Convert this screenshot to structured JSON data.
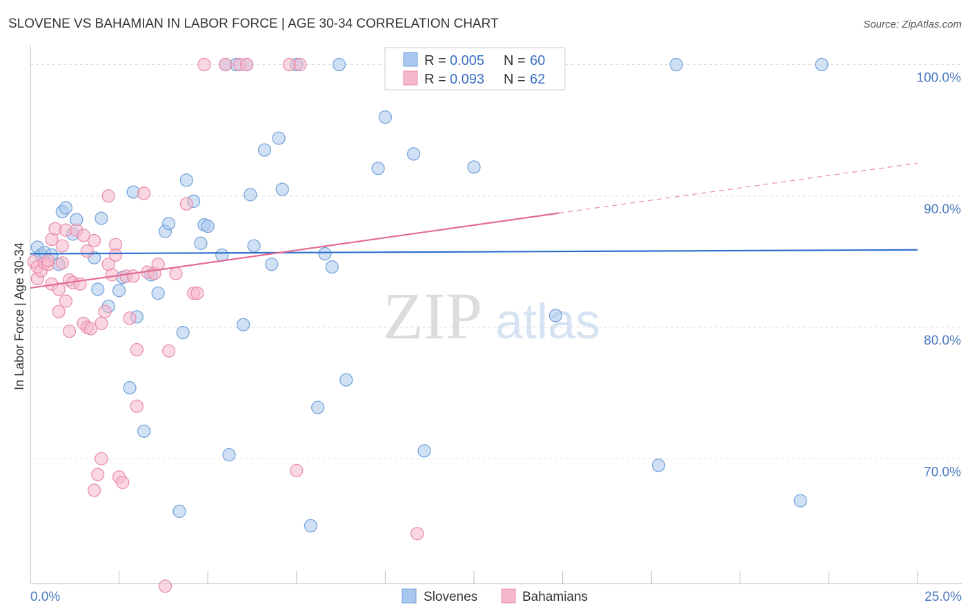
{
  "title": "SLOVENE VS BAHAMIAN IN LABOR FORCE | AGE 30-34 CORRELATION CHART",
  "source": "Source: ZipAtlas.com",
  "watermark": {
    "zip": "ZIP",
    "atlas": "atlas"
  },
  "colors": {
    "slovenes_fill": "#a9c8ef",
    "slovenes_stroke": "#6f9fd8",
    "slovenes_line": "#2e6fce",
    "bahamians_fill": "#f5b8cb",
    "bahamians_stroke": "#e889a8",
    "bahamians_line": "#e26a93",
    "tick_label": "#4a78c0",
    "grid": "#dddddd"
  },
  "legend": {
    "rows": [
      {
        "r_label": "R =",
        "r_value": "0.005",
        "n_label": "N =",
        "n_value": "60"
      },
      {
        "r_label": "R =",
        "r_value": "0.093",
        "n_label": "N =",
        "n_value": "62"
      }
    ]
  },
  "bottom_legend": [
    "Slovenes",
    "Bahamians"
  ],
  "chart_data": {
    "type": "scatter",
    "xlabel": "",
    "ylabel": "In Labor Force | Age 30-34",
    "xlim": [
      0,
      25
    ],
    "ylim": [
      60.5,
      101.5
    ],
    "x_tick_labels": [
      {
        "value": 0,
        "label": "0.0%"
      },
      {
        "value": 25,
        "label": "25.0%"
      }
    ],
    "y_tick_labels": [
      {
        "value": 100,
        "label": "100.0%"
      },
      {
        "value": 90,
        "label": "90.0%"
      },
      {
        "value": 80,
        "label": "80.0%"
      },
      {
        "value": 70,
        "label": "70.0%"
      }
    ],
    "grid": true,
    "series": [
      {
        "name": "Slovenes",
        "r": 0.005,
        "n": 60,
        "trend": {
          "x0": 0,
          "y0": 85.6,
          "x1": 25,
          "y1": 85.9
        },
        "points": [
          [
            0.2,
            86.1
          ],
          [
            0.3,
            85.5
          ],
          [
            0.4,
            85.7
          ],
          [
            0.6,
            85.5
          ],
          [
            0.8,
            84.8
          ],
          [
            0.9,
            88.8
          ],
          [
            1.0,
            89.1
          ],
          [
            1.2,
            87.1
          ],
          [
            1.3,
            88.2
          ],
          [
            1.8,
            85.3
          ],
          [
            1.9,
            82.9
          ],
          [
            2.0,
            88.3
          ],
          [
            2.2,
            81.6
          ],
          [
            2.5,
            82.8
          ],
          [
            2.6,
            83.8
          ],
          [
            2.8,
            75.4
          ],
          [
            2.9,
            90.3
          ],
          [
            3.0,
            80.8
          ],
          [
            3.2,
            72.1
          ],
          [
            3.4,
            84.0
          ],
          [
            3.6,
            82.6
          ],
          [
            3.8,
            87.3
          ],
          [
            3.9,
            87.9
          ],
          [
            4.2,
            66.0
          ],
          [
            4.3,
            79.6
          ],
          [
            4.4,
            91.2
          ],
          [
            4.6,
            89.6
          ],
          [
            4.8,
            86.4
          ],
          [
            4.9,
            87.8
          ],
          [
            5.0,
            87.7
          ],
          [
            5.4,
            85.5
          ],
          [
            5.5,
            100.0
          ],
          [
            5.6,
            70.3
          ],
          [
            5.8,
            100.0
          ],
          [
            6.0,
            80.2
          ],
          [
            6.1,
            100.0
          ],
          [
            6.2,
            90.1
          ],
          [
            6.3,
            86.2
          ],
          [
            6.6,
            93.5
          ],
          [
            6.8,
            84.8
          ],
          [
            7.0,
            94.4
          ],
          [
            7.1,
            90.5
          ],
          [
            7.5,
            100.0
          ],
          [
            7.9,
            64.9
          ],
          [
            8.1,
            73.9
          ],
          [
            8.3,
            85.6
          ],
          [
            8.5,
            84.6
          ],
          [
            8.7,
            100.0
          ],
          [
            8.9,
            76.0
          ],
          [
            9.8,
            92.1
          ],
          [
            10.0,
            96.0
          ],
          [
            10.8,
            93.2
          ],
          [
            11.1,
            70.6
          ],
          [
            12.2,
            100.0
          ],
          [
            12.5,
            92.2
          ],
          [
            14.8,
            80.9
          ],
          [
            17.7,
            69.5
          ],
          [
            18.2,
            100.0
          ],
          [
            21.7,
            66.8
          ],
          [
            22.3,
            100.0
          ]
        ]
      },
      {
        "name": "Bahamians",
        "r": 0.093,
        "n": 62,
        "trend": {
          "x0": 0,
          "y0": 83.0,
          "x1": 14.9,
          "y1": 88.7
        },
        "trend_dashed": {
          "x0": 14.9,
          "y0": 88.7,
          "x1": 25,
          "y1": 92.5
        },
        "points": [
          [
            0.1,
            85.0
          ],
          [
            0.2,
            84.6
          ],
          [
            0.2,
            83.7
          ],
          [
            0.3,
            84.3
          ],
          [
            0.4,
            84.9
          ],
          [
            0.5,
            84.8
          ],
          [
            0.5,
            85.1
          ],
          [
            0.6,
            83.3
          ],
          [
            0.6,
            86.7
          ],
          [
            0.7,
            87.5
          ],
          [
            0.8,
            82.9
          ],
          [
            0.8,
            81.2
          ],
          [
            0.9,
            86.2
          ],
          [
            0.9,
            84.9
          ],
          [
            1.0,
            87.4
          ],
          [
            1.0,
            82.0
          ],
          [
            1.1,
            83.6
          ],
          [
            1.1,
            79.7
          ],
          [
            1.2,
            83.4
          ],
          [
            1.3,
            87.4
          ],
          [
            1.4,
            83.3
          ],
          [
            1.5,
            80.3
          ],
          [
            1.5,
            87.0
          ],
          [
            1.6,
            80.0
          ],
          [
            1.6,
            85.8
          ],
          [
            1.7,
            79.9
          ],
          [
            1.8,
            86.6
          ],
          [
            1.8,
            67.6
          ],
          [
            1.9,
            68.8
          ],
          [
            2.0,
            80.3
          ],
          [
            2.0,
            70.0
          ],
          [
            2.1,
            81.2
          ],
          [
            2.2,
            84.8
          ],
          [
            2.2,
            90.0
          ],
          [
            2.3,
            84.0
          ],
          [
            2.4,
            86.3
          ],
          [
            2.4,
            85.5
          ],
          [
            2.5,
            68.6
          ],
          [
            2.6,
            68.2
          ],
          [
            2.7,
            83.9
          ],
          [
            2.8,
            80.7
          ],
          [
            2.9,
            83.9
          ],
          [
            3.0,
            74.0
          ],
          [
            3.0,
            78.3
          ],
          [
            3.2,
            90.2
          ],
          [
            3.3,
            84.2
          ],
          [
            3.5,
            84.1
          ],
          [
            3.6,
            84.8
          ],
          [
            3.8,
            60.3
          ],
          [
            3.9,
            78.2
          ],
          [
            4.1,
            84.1
          ],
          [
            4.4,
            89.4
          ],
          [
            4.6,
            82.6
          ],
          [
            4.7,
            82.6
          ],
          [
            4.9,
            100.0
          ],
          [
            5.5,
            100.0
          ],
          [
            5.9,
            100.0
          ],
          [
            6.1,
            100.0
          ],
          [
            7.3,
            100.0
          ],
          [
            7.5,
            69.1
          ],
          [
            7.6,
            100.0
          ],
          [
            10.9,
            64.3
          ]
        ]
      }
    ]
  }
}
